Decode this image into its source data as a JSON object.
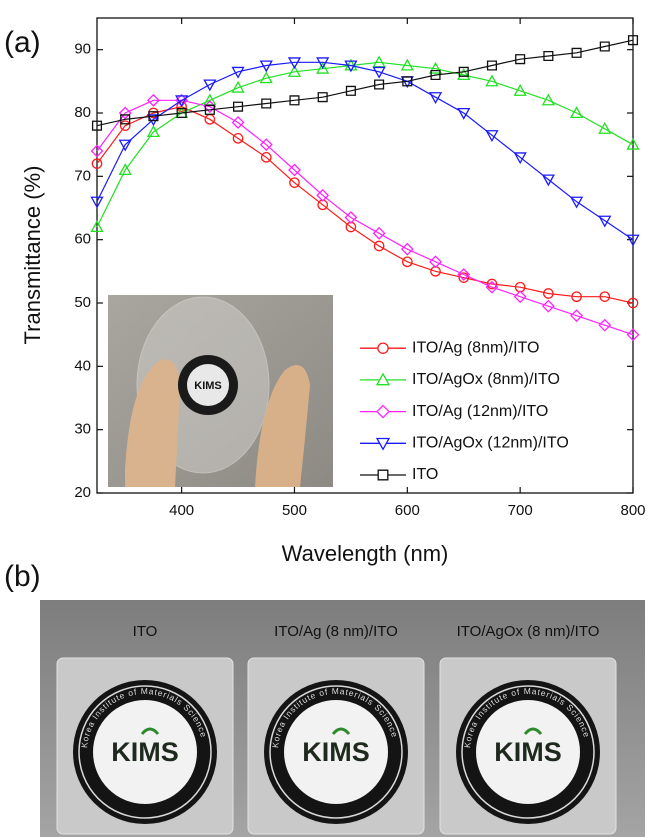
{
  "panel_a_label": "(a)",
  "panel_b_label": "(b)",
  "chart_data": {
    "type": "line",
    "xlabel": "Wavelength (nm)",
    "ylabel": "Transmittance (%)",
    "x": [
      325,
      350,
      375,
      400,
      425,
      450,
      475,
      500,
      525,
      550,
      575,
      600,
      625,
      650,
      675,
      700,
      725,
      750,
      775,
      800
    ],
    "xlim": [
      325,
      800
    ],
    "xticks": [
      400,
      500,
      600,
      700,
      800
    ],
    "ylim": [
      20,
      95
    ],
    "yticks": [
      20,
      30,
      40,
      50,
      60,
      70,
      80,
      90
    ],
    "legend": "lower right",
    "series": [
      {
        "name": "ITO/Ag (8nm)/ITO",
        "color": "#ff1a1a",
        "marker": "circle",
        "values": [
          72,
          78,
          80,
          81,
          79,
          76,
          73,
          69,
          65.5,
          62,
          59,
          56.5,
          55,
          54,
          53,
          52.5,
          51.5,
          51,
          51,
          50
        ]
      },
      {
        "name": "ITO/AgOx (8nm)/ITO",
        "color": "#22e022",
        "marker": "triangle-up",
        "values": [
          62,
          71,
          77,
          80,
          82,
          84,
          85.5,
          86.5,
          87,
          87.5,
          88,
          87.5,
          87,
          86,
          85,
          83.5,
          82,
          80,
          77.5,
          75
        ]
      },
      {
        "name": "ITO/Ag (12nm)/ITO",
        "color": "#ff22ff",
        "marker": "diamond",
        "values": [
          74,
          80,
          82,
          82,
          81,
          78.5,
          75,
          71,
          67,
          63.5,
          61,
          58.5,
          56.5,
          54.5,
          52.5,
          51,
          49.5,
          48,
          46.5,
          45
        ]
      },
      {
        "name": "ITO/AgOx (12nm)/ITO",
        "color": "#1a1aff",
        "marker": "triangle-down",
        "values": [
          66,
          75,
          79,
          82,
          84.5,
          86.5,
          87.5,
          88,
          88,
          87.5,
          86.5,
          85,
          82.5,
          80,
          76.5,
          73,
          69.5,
          66,
          63,
          60
        ]
      },
      {
        "name": "ITO",
        "color": "#111111",
        "marker": "square",
        "values": [
          78,
          79,
          79.5,
          80,
          80.5,
          81,
          81.5,
          82,
          82.5,
          83.5,
          84.5,
          85,
          86,
          86.5,
          87.5,
          88.5,
          89,
          89.5,
          90.5,
          91.5
        ]
      }
    ]
  },
  "inset_photo": {
    "logo_text": "KIMS"
  },
  "photo_b": {
    "ring_text": "Korea Institute of Materials Science",
    "samples": [
      {
        "label": "ITO",
        "logo_text": "KIMS"
      },
      {
        "label": "ITO/Ag (8 nm)/ITO",
        "logo_text": "KIMS"
      },
      {
        "label": "ITO/AgOx (8 nm)/ITO",
        "logo_text": "KIMS"
      }
    ]
  }
}
